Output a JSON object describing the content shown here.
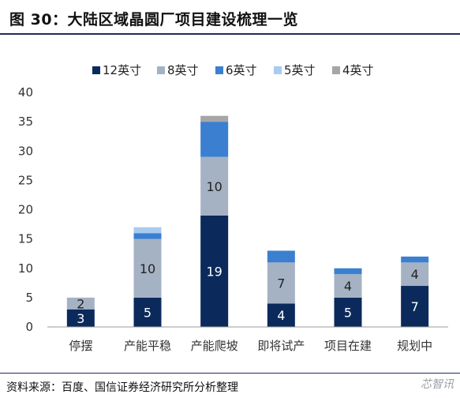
{
  "figure_title": "图 30：大陆区域晶圆厂项目建设梳理一览",
  "source": "资料来源：百度、国信证券经济研究所分析整理",
  "watermark": "芯智讯",
  "colors": {
    "12英寸": "#0b2a5b",
    "8英寸": "#a5b2c4",
    "6英寸": "#3b7fd0",
    "5英寸": "#a9cbf0",
    "4英寸": "#a6a6a6",
    "rule": "#1f2d5a"
  },
  "chart_data": {
    "type": "bar",
    "stacked": true,
    "categories": [
      "停摆",
      "产能平稳",
      "产能爬坡",
      "即将试产",
      "项目在建",
      "规划中"
    ],
    "series": [
      {
        "name": "12英寸",
        "values": [
          3,
          5,
          19,
          4,
          5,
          7
        ]
      },
      {
        "name": "8英寸",
        "values": [
          2,
          10,
          10,
          7,
          4,
          4
        ]
      },
      {
        "name": "6英寸",
        "values": [
          0,
          1,
          6,
          2,
          1,
          1
        ]
      },
      {
        "name": "5英寸",
        "values": [
          0,
          1,
          0,
          0,
          0,
          0
        ]
      },
      {
        "name": "4英寸",
        "values": [
          0,
          0,
          1,
          0,
          0,
          0
        ]
      }
    ],
    "data_labels": {
      "12英寸": [
        "3",
        "5",
        "19",
        "4",
        "5",
        "7"
      ],
      "8英寸": [
        "2",
        "10",
        "10",
        "7",
        "4",
        "4"
      ]
    },
    "yticks": [
      "0",
      "5",
      "10",
      "15",
      "20",
      "25",
      "30",
      "35",
      "40"
    ],
    "ylim": [
      0,
      40
    ],
    "grid": false,
    "legend_position": "top"
  }
}
